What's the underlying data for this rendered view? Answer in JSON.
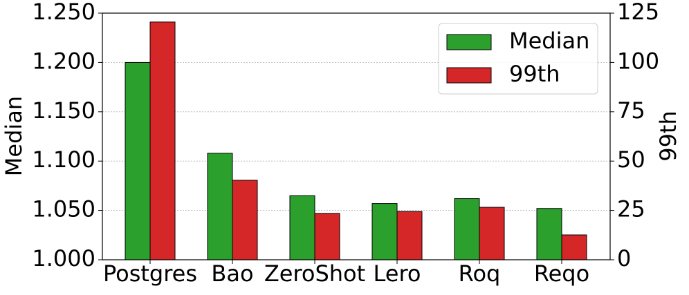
{
  "chart_data": {
    "type": "bar",
    "categories": [
      "Postgres",
      "Bao",
      "ZeroShot",
      "Lero",
      "Roq",
      "Reqo"
    ],
    "series": [
      {
        "name": "Median",
        "color": "#2ca02c",
        "values": [
          1.2,
          1.108,
          1.065,
          1.057,
          1.062,
          1.052
        ]
      },
      {
        "name": "99th",
        "color": "#d62728",
        "axis": "y2",
        "values": [
          120.5,
          40.3,
          23.5,
          24.5,
          26.6,
          12.6
        ]
      }
    ],
    "ylabel": "Median",
    "y2label": "99th",
    "ylim": [
      1.0,
      1.25
    ],
    "yticks": [
      {
        "value": 1.0,
        "label": "1.000"
      },
      {
        "value": 1.05,
        "label": "1.050"
      },
      {
        "value": 1.1,
        "label": "1.100"
      },
      {
        "value": 1.15,
        "label": "1.150"
      },
      {
        "value": 1.2,
        "label": "1.200"
      },
      {
        "value": 1.25,
        "label": "1.250"
      }
    ],
    "y2lim": [
      0,
      125
    ],
    "y2ticks": [
      0,
      25,
      50,
      75,
      100,
      125
    ],
    "grid": true,
    "legend": "upper right"
  }
}
